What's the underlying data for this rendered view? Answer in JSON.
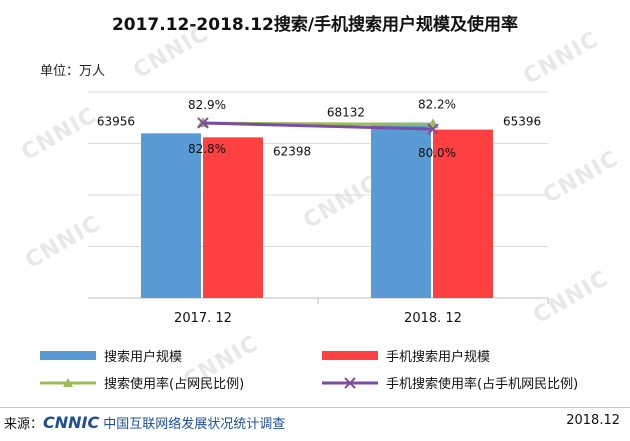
{
  "title": "2017.12-2018.12搜索/手机搜索用户规模及使用率",
  "unit_label": "单位：万人",
  "watermark": "CNNIC",
  "chart_data": {
    "type": "bar",
    "categories": [
      "2017. 12",
      "2018. 12"
    ],
    "series": [
      {
        "name": "搜索用户规模",
        "kind": "bar",
        "color": "#5b9bd5",
        "values": [
          63956,
          68132
        ],
        "labels": [
          "63956",
          "68132"
        ]
      },
      {
        "name": "手机搜索用户规模",
        "kind": "bar",
        "color": "#ff4040",
        "values": [
          62398,
          65396
        ],
        "labels": [
          "62398",
          "65396"
        ]
      },
      {
        "name": "搜索使用率(占网民比例)",
        "kind": "line",
        "color": "#9bbb59",
        "marker": "triangle",
        "values": [
          82.8,
          82.2
        ],
        "labels": [
          "82.8%",
          "82.2%"
        ]
      },
      {
        "name": "手机搜索使用率(占手机网民比例)",
        "kind": "line",
        "color": "#7a4ea3",
        "marker": "x",
        "values": [
          82.9,
          80.0
        ],
        "labels": [
          "82.9%",
          "80.0%"
        ]
      }
    ],
    "ylim_bars": [
      0,
      80000
    ],
    "grid": true,
    "legend_position": "bottom"
  },
  "footer": {
    "source_label": "来源：",
    "logo": "CNNIC",
    "org": "中国互联网络发展状况统计调查",
    "date": "2018.12"
  }
}
